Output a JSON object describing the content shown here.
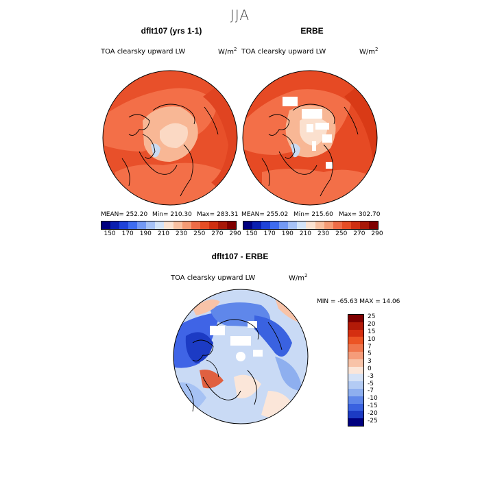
{
  "season": "JJA",
  "panels": [
    {
      "title": "dflt107 (yrs 1-1)",
      "variable": "TOA clearsky upward LW",
      "units_base": "W/m",
      "units_exp": "2",
      "mean": "MEAN= 252.20",
      "min": "Min= 210.30",
      "max": "Max= 283.31"
    },
    {
      "title": "ERBE",
      "variable": "TOA clearsky upward LW",
      "units_base": "W/m",
      "units_exp": "2",
      "mean": "MEAN= 255.02",
      "min": "Min= 215.60",
      "max": "Max= 302.70"
    }
  ],
  "colorbar_top": {
    "ticks": [
      "150",
      "170",
      "190",
      "210",
      "230",
      "250",
      "270",
      "290"
    ],
    "colors": [
      "#00007f",
      "#0a1fb0",
      "#1f43d9",
      "#3e6cf0",
      "#7399f5",
      "#a6c2f7",
      "#d3e4f9",
      "#fbe3d2",
      "#f9c1a1",
      "#f59b74",
      "#ee6c47",
      "#e64d25",
      "#cf2f11",
      "#a81808",
      "#7f0000"
    ]
  },
  "diff": {
    "title": "dflt107 - ERBE",
    "variable": "TOA clearsky upward LW",
    "units_base": "W/m",
    "units_exp": "2",
    "minmax": "MIN = -65.63 MAX =  14.06",
    "labels": [
      "25",
      "20",
      "15",
      "10",
      "7",
      "5",
      "3",
      "0",
      "-3",
      "-5",
      "-7",
      "-10",
      "-15",
      "-20",
      "-25"
    ],
    "colors": [
      "#7f0000",
      "#b21a08",
      "#d52f10",
      "#ec5424",
      "#f0764d",
      "#f59c7a",
      "#f8c3a8",
      "#fbe6d9",
      "#d5e2f6",
      "#b3cbf4",
      "#8eafef",
      "#5f87ea",
      "#3a62e0",
      "#1c3bc4",
      "#00007f"
    ]
  }
}
